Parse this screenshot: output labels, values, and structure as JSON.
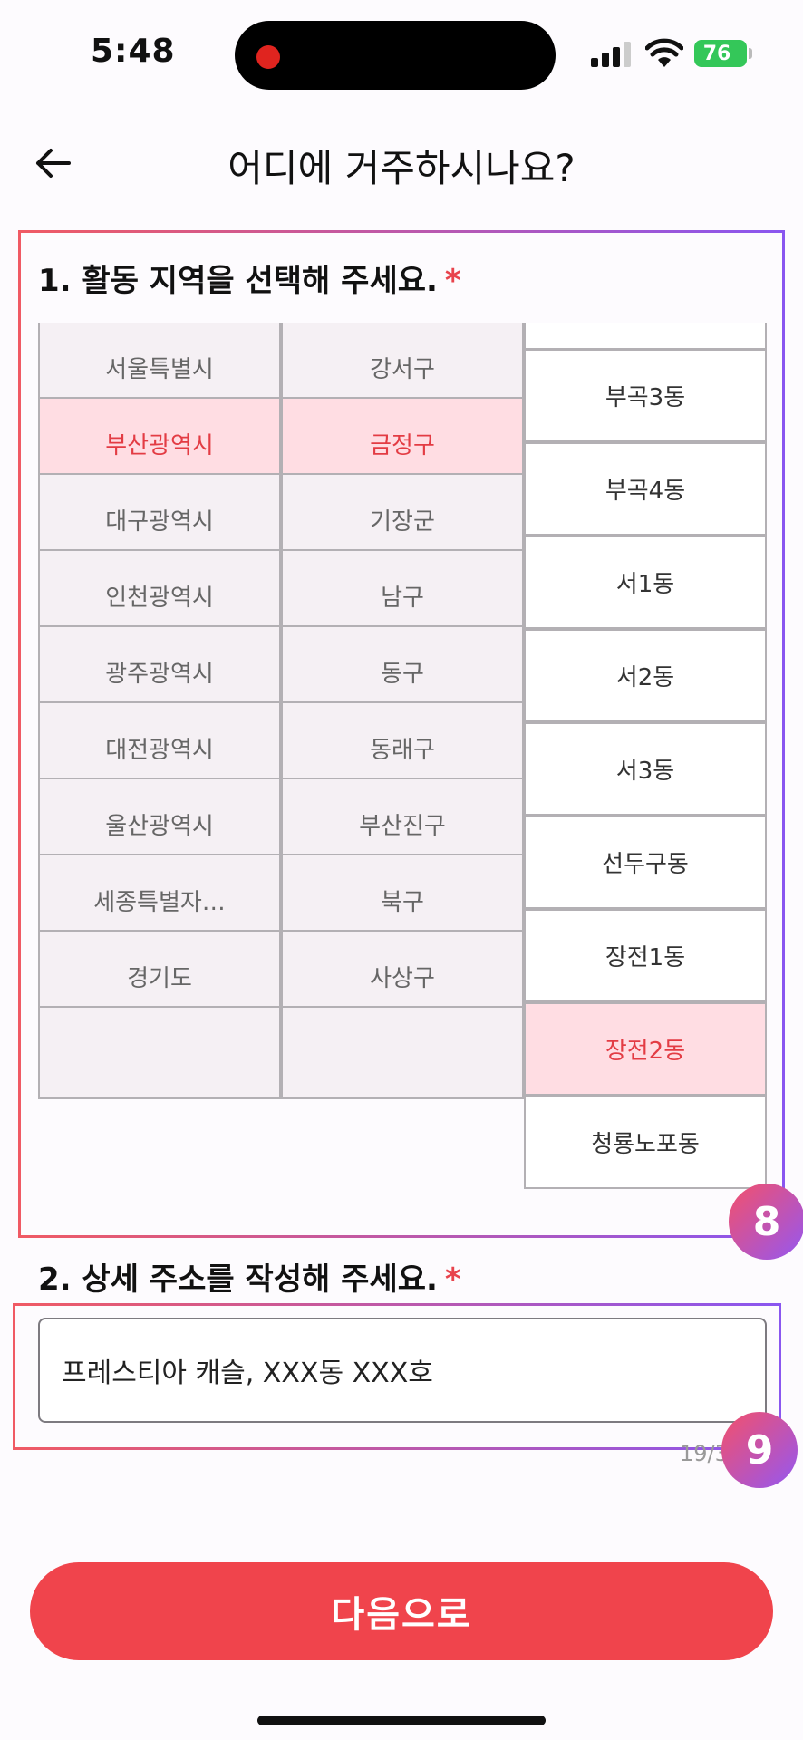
{
  "status_bar": {
    "time": "5:48",
    "battery": "76"
  },
  "header": {
    "title": "어디에 거주하시나요?"
  },
  "section1": {
    "heading": "1. 활동 지역을 선택해 주세요.",
    "required_mark": "*",
    "provinces": [
      "서울특별시",
      "부산광역시",
      "대구광역시",
      "인천광역시",
      "광주광역시",
      "대전광역시",
      "울산광역시",
      "세종특별자…",
      "경기도",
      ""
    ],
    "districts": [
      "강서구",
      "금정구",
      "기장군",
      "남구",
      "동구",
      "동래구",
      "부산진구",
      "북구",
      "사상구",
      ""
    ],
    "neighborhoods": [
      "",
      "부곡3동",
      "부곡4동",
      "서1동",
      "서2동",
      "서3동",
      "선두구동",
      "장전1동",
      "장전2동",
      "청룡노포동"
    ],
    "selected_province": "부산광역시",
    "selected_district": "금정구",
    "selected_neighborhood": "장전2동"
  },
  "section2": {
    "heading": "2. 상세 주소를 작성해 주세요.",
    "required_mark": "*",
    "address_value": "프레스티아 캐슬, XXX동 XXX호",
    "char_count": "19/3"
  },
  "annotations": {
    "badge_8": "8",
    "badge_9": "9"
  },
  "next_button_label": "다음으로",
  "colors": {
    "accent": "#f0444c",
    "selected_bg": "#ffdde3",
    "selected_text": "#e33c44"
  }
}
